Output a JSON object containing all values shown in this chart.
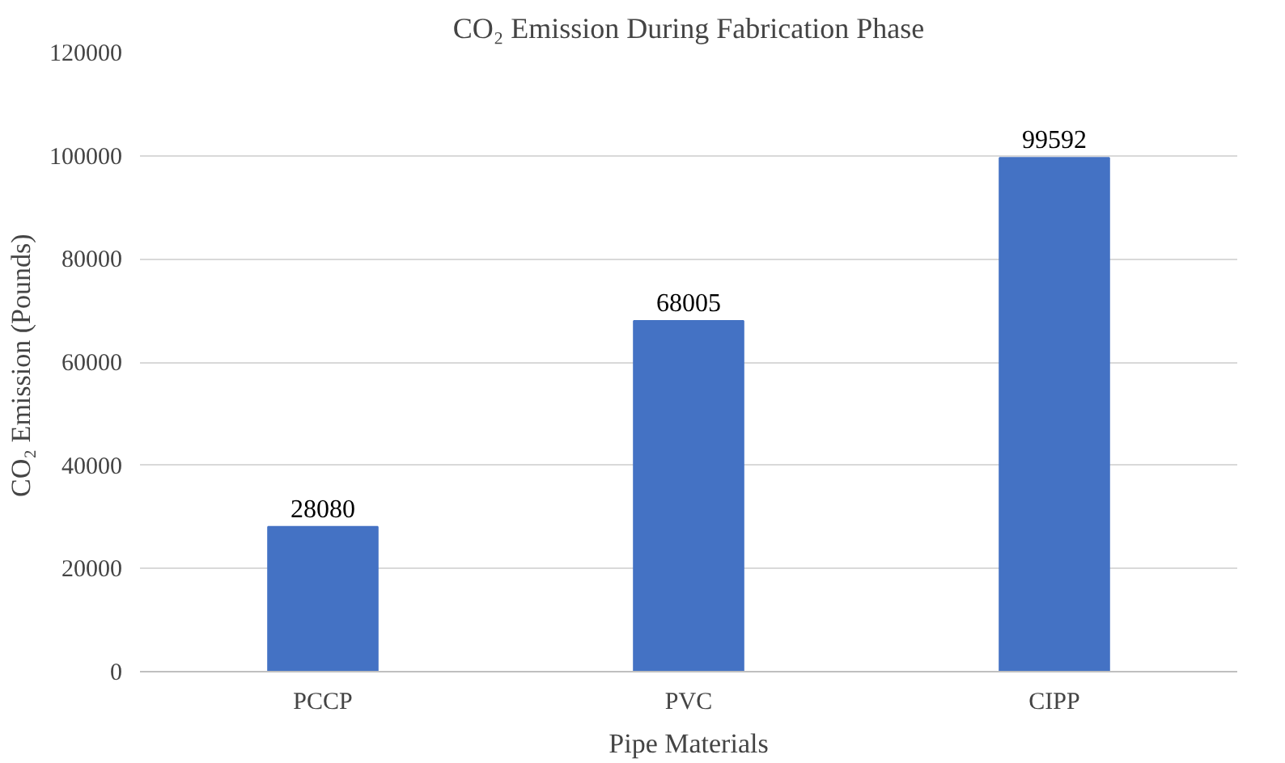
{
  "chart_data": {
    "type": "bar",
    "title": "CO₂ Emission During Fabrication Phase",
    "xlabel": "Pipe Materials",
    "ylabel": "CO₂ Emission  (Pounds)",
    "categories": [
      "PCCP",
      "PVC",
      "CIPP"
    ],
    "values": [
      28080,
      68005,
      99592
    ],
    "color": "#4472c4",
    "ylim": [
      0,
      120000
    ],
    "yticks": [
      0,
      20000,
      40000,
      60000,
      80000,
      100000,
      120000
    ],
    "grid": "y",
    "data_labels": true
  }
}
